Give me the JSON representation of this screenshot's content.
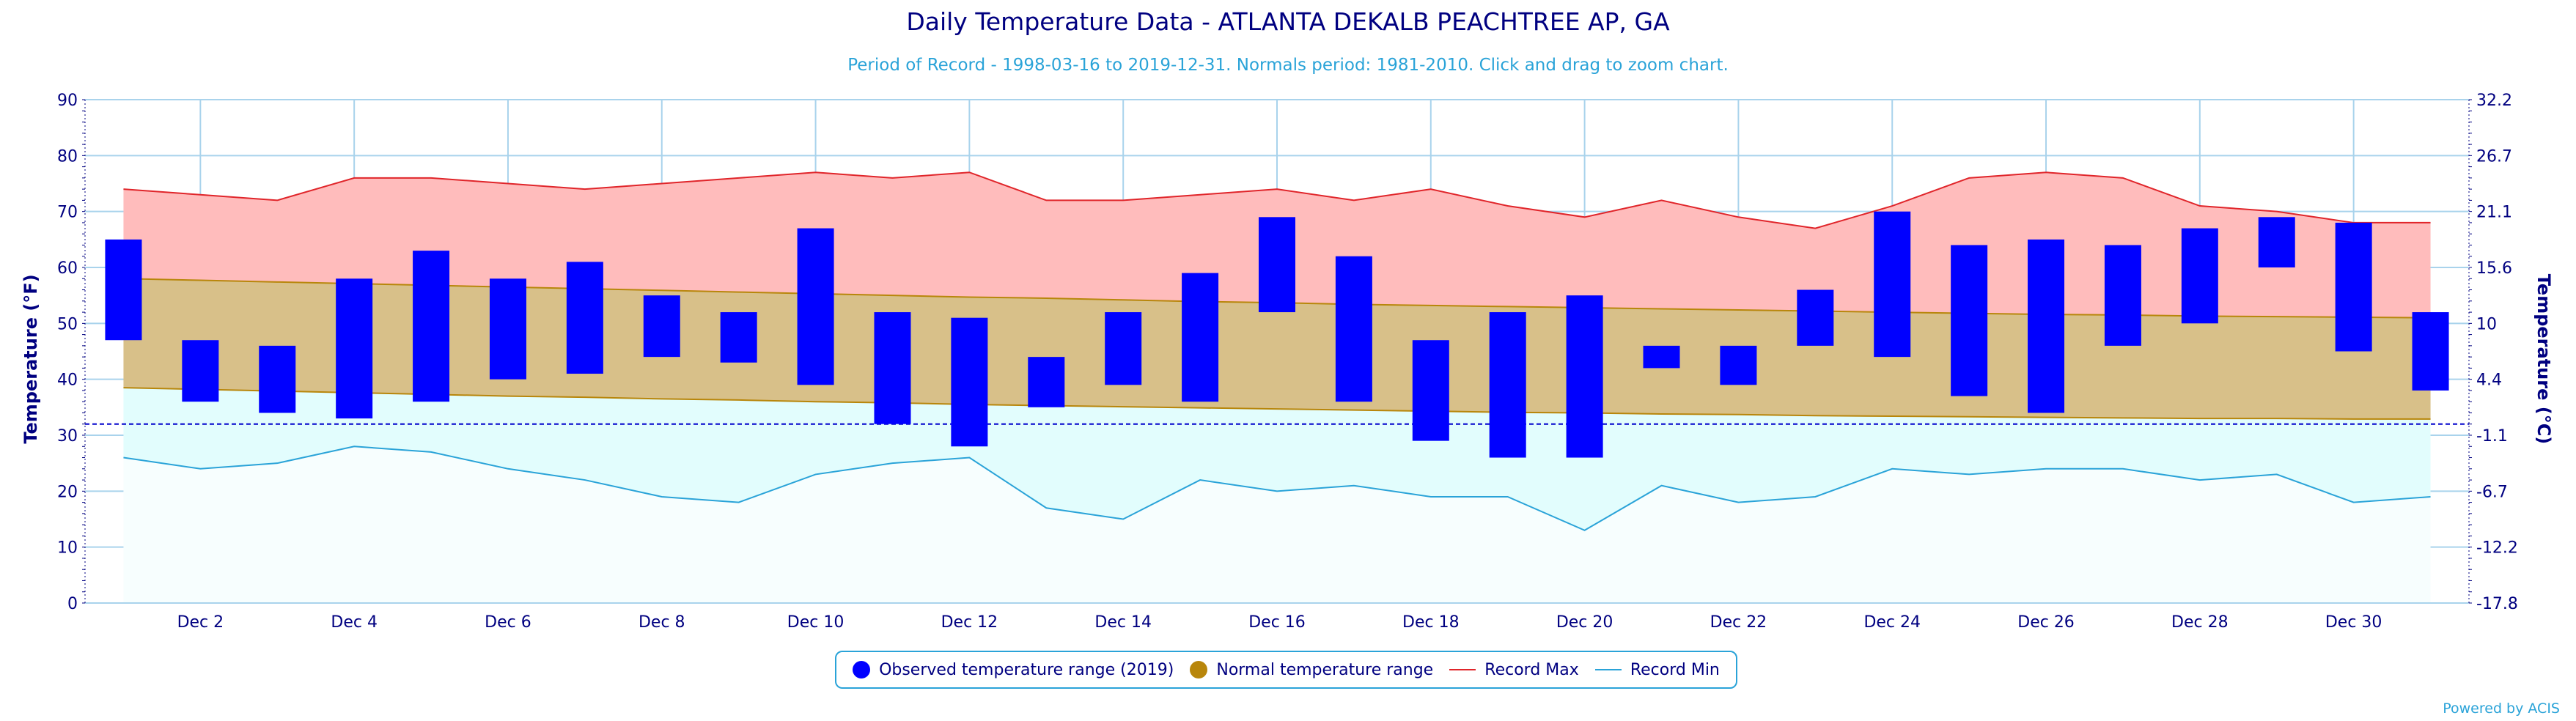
{
  "title": "Daily Temperature Data - ATLANTA DEKALB PEACHTREE AP, GA",
  "subtitle": "Period of Record - 1998-03-16 to 2019-12-31. Normals period: 1981-2010. Click and drag to zoom chart.",
  "powered_by": "Powered by ACIS",
  "colors": {
    "observed": "#0000ff",
    "normal": "#b8860b",
    "normal_fill": "#d8c089",
    "record_max": "#e0252a",
    "record_max_fill": "#ffbcbc",
    "record_min": "#2aa3d8",
    "record_min_fill": "#e2fdfd",
    "axis": "#000080",
    "grid": "#a9d3ec",
    "freezing_line": "#0000cc"
  },
  "legend": {
    "observed": "Observed temperature range (2019)",
    "normal": "Normal temperature range",
    "record_max": "Record Max",
    "record_min": "Record Min"
  },
  "chart_data": {
    "type": "bar",
    "ylabel": "Temperature (°F)",
    "ylabel_right": "Temperature (°C)",
    "ylim": [
      0,
      90
    ],
    "yticks": [
      0,
      10,
      20,
      30,
      40,
      50,
      60,
      70,
      80,
      90
    ],
    "yticks_right": [
      "-17.8",
      "-12.2",
      "-6.7",
      "-1.1",
      "4.4",
      "10",
      "15.6",
      "21.1",
      "26.7",
      "32.2"
    ],
    "xlim": [
      0.5,
      31.5
    ],
    "days": [
      1,
      2,
      3,
      4,
      5,
      6,
      7,
      8,
      9,
      10,
      11,
      12,
      13,
      14,
      15,
      16,
      17,
      18,
      19,
      20,
      21,
      22,
      23,
      24,
      25,
      26,
      27,
      28,
      29,
      30,
      31
    ],
    "x_tick_labels": [
      "Dec 2",
      "Dec 4",
      "Dec 6",
      "Dec 8",
      "Dec 10",
      "Dec 12",
      "Dec 14",
      "Dec 16",
      "Dec 18",
      "Dec 20",
      "Dec 22",
      "Dec 24",
      "Dec 26",
      "Dec 28",
      "Dec 30"
    ],
    "x_tick_days": [
      2,
      4,
      6,
      8,
      10,
      12,
      14,
      16,
      18,
      20,
      22,
      24,
      26,
      28,
      30
    ],
    "freezing_f": 32,
    "grid": true,
    "legend_position": "bottom",
    "series": [
      {
        "name": "Observed temperature range (2019)",
        "type": "range-bar",
        "low": [
          47,
          36,
          34,
          33,
          36,
          40,
          41,
          44,
          43,
          39,
          32,
          28,
          35,
          39,
          36,
          52,
          36,
          29,
          26,
          26,
          42,
          39,
          46,
          44,
          37,
          34,
          46,
          50,
          60,
          45,
          38
        ],
        "high": [
          65,
          47,
          46,
          58,
          63,
          58,
          61,
          55,
          52,
          67,
          52,
          51,
          44,
          52,
          59,
          69,
          62,
          47,
          52,
          55,
          46,
          46,
          56,
          70,
          64,
          65,
          64,
          67,
          69,
          68,
          52
        ]
      },
      {
        "name": "Normal temperature range",
        "type": "range-area",
        "low": [
          38.5,
          38.2,
          37.9,
          37.6,
          37.3,
          37.0,
          36.8,
          36.5,
          36.3,
          36.0,
          35.8,
          35.5,
          35.3,
          35.1,
          34.9,
          34.7,
          34.5,
          34.3,
          34.1,
          34.0,
          33.8,
          33.7,
          33.5,
          33.4,
          33.3,
          33.2,
          33.1,
          33.0,
          33.0,
          32.9,
          32.9
        ],
        "high": [
          58.0,
          57.7,
          57.4,
          57.1,
          56.8,
          56.5,
          56.2,
          55.9,
          55.6,
          55.3,
          55.0,
          54.7,
          54.5,
          54.2,
          53.9,
          53.7,
          53.4,
          53.2,
          53.0,
          52.8,
          52.6,
          52.4,
          52.2,
          52.0,
          51.8,
          51.6,
          51.5,
          51.3,
          51.2,
          51.1,
          51.0
        ]
      },
      {
        "name": "Record Max",
        "type": "line",
        "values": [
          74,
          73,
          72,
          76,
          76,
          75,
          74,
          75,
          76,
          77,
          76,
          77,
          72,
          72,
          73,
          74,
          72,
          74,
          71,
          69,
          72,
          69,
          67,
          71,
          76,
          77,
          76,
          71,
          70,
          68,
          68
        ]
      },
      {
        "name": "Record Min",
        "type": "line",
        "values": [
          26,
          24,
          25,
          28,
          27,
          24,
          22,
          19,
          18,
          23,
          25,
          26,
          17,
          15,
          22,
          20,
          21,
          19,
          19,
          13,
          21,
          18,
          19,
          24,
          23,
          24,
          24,
          22,
          23,
          18,
          19
        ]
      }
    ]
  }
}
